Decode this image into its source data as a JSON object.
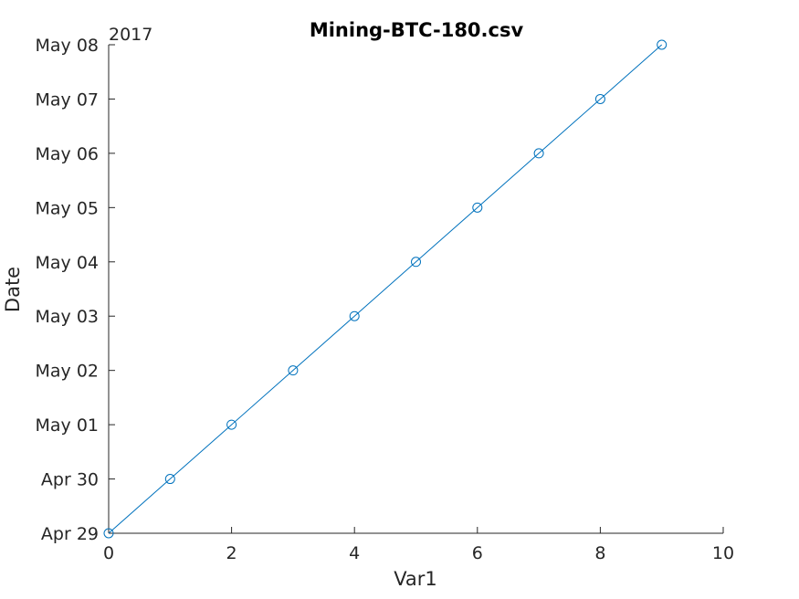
{
  "chart_data": {
    "type": "line",
    "title": "Mining-BTC-180.csv",
    "xlabel": "Var1",
    "ylabel": "Date",
    "year_label": "2017",
    "xlim": [
      0,
      10
    ],
    "ylim": [
      "2017-04-29",
      "2017-05-08"
    ],
    "x_ticks": [
      0,
      2,
      4,
      6,
      8,
      10
    ],
    "y_ticks": [
      "2017-04-29",
      "2017-04-30",
      "2017-05-01",
      "2017-05-02",
      "2017-05-03",
      "2017-05-04",
      "2017-05-05",
      "2017-05-06",
      "2017-05-07",
      "2017-05-08"
    ],
    "x_tick_labels": [
      "0",
      "2",
      "4",
      "6",
      "8",
      "10"
    ],
    "y_tick_labels": [
      "Apr 29",
      "Apr 30",
      "May 01",
      "May 02",
      "May 03",
      "May 04",
      "May 05",
      "May 06",
      "May 07",
      "May 08"
    ],
    "grid": false,
    "series": [
      {
        "color": "#0072BD",
        "marker": "circle",
        "x": [
          0,
          1,
          2,
          3,
          4,
          5,
          6,
          7,
          8,
          9
        ],
        "y": [
          "2017-04-29",
          "2017-04-30",
          "2017-05-01",
          "2017-05-02",
          "2017-05-03",
          "2017-05-04",
          "2017-05-05",
          "2017-05-06",
          "2017-05-07",
          "2017-05-08"
        ]
      }
    ]
  }
}
